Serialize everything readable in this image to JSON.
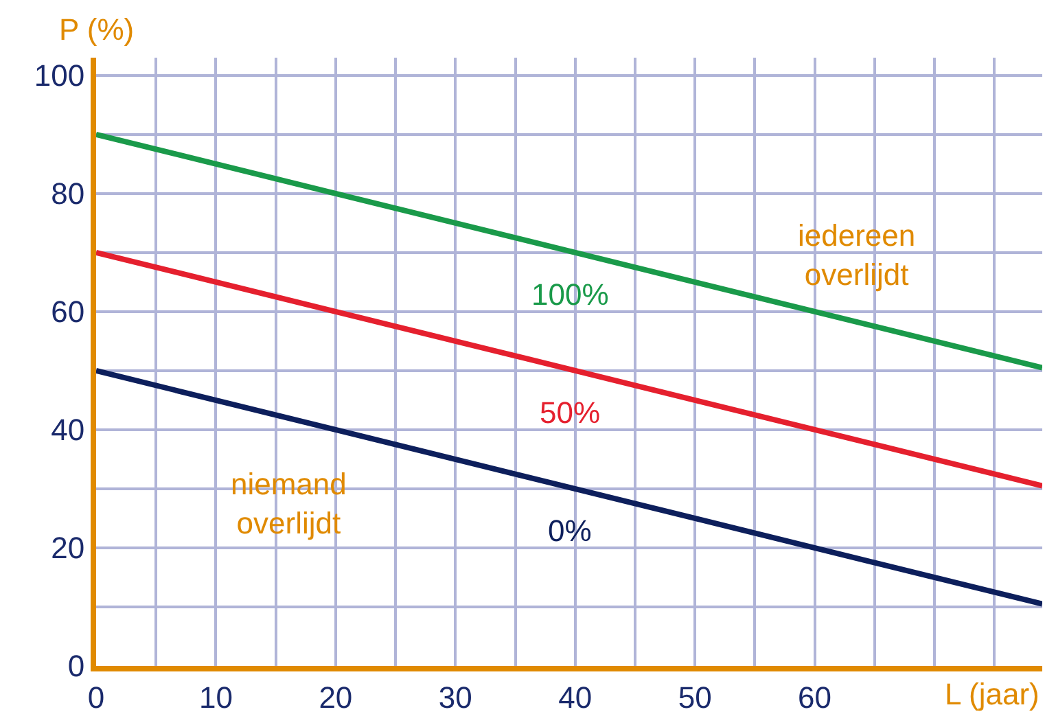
{
  "chart_data": {
    "type": "line",
    "xlabel": "L (jaar)",
    "ylabel": "P (%)",
    "x": [
      0,
      79
    ],
    "series": [
      {
        "name": "100%",
        "color": "#1a9a4a",
        "values": [
          90,
          50.5
        ]
      },
      {
        "name": "50%",
        "color": "#e5202e",
        "values": [
          70,
          30.5
        ]
      },
      {
        "name": "0%",
        "color": "#0d1f5c",
        "values": [
          50,
          10.5
        ]
      }
    ],
    "xlim": [
      0,
      79
    ],
    "xticks": [
      0,
      {
        "value": 5,
        "label": null
      },
      10,
      {
        "value": 15,
        "label": null
      },
      20,
      {
        "value": 25,
        "label": null
      },
      30,
      {
        "value": 35,
        "label": null
      },
      40,
      {
        "value": 45,
        "label": null
      },
      50,
      {
        "value": 55,
        "label": null
      },
      60,
      {
        "value": 65,
        "label": null
      },
      {
        "value": 70,
        "label": null
      },
      {
        "value": 75,
        "label": null
      }
    ],
    "ylim": [
      0,
      103
    ],
    "yticks": [
      0,
      {
        "value": 10,
        "label": null
      },
      20,
      {
        "value": 30,
        "label": null
      },
      40,
      {
        "value": 50,
        "label": null
      },
      60,
      {
        "value": 70,
        "label": null
      },
      80,
      {
        "value": 90,
        "label": null
      },
      100
    ],
    "grid": true,
    "legend": false,
    "marker": "none",
    "line_style": "solid",
    "annotations": [
      "iedereen\noverlijdt",
      "niemand\noverlijdt"
    ]
  }
}
